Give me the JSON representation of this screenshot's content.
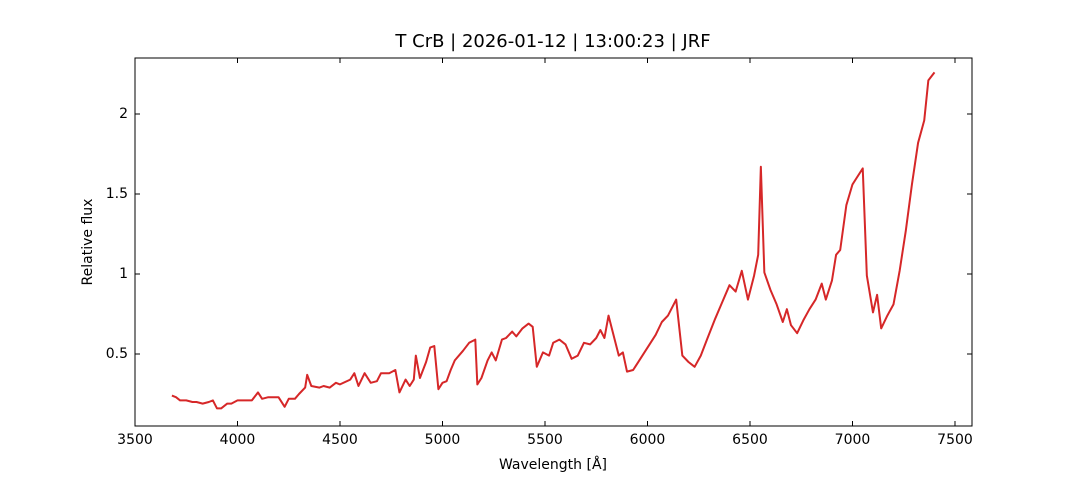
{
  "chart_data": {
    "type": "line",
    "title": "T CrB | 2026-01-12 | 13:00:23 | JRF",
    "x_label": "Wavelength [Å]",
    "y_label": "Relative flux",
    "x": [
      3680,
      3700,
      3720,
      3750,
      3780,
      3800,
      3830,
      3860,
      3880,
      3900,
      3920,
      3950,
      3970,
      4000,
      4030,
      4070,
      4100,
      4120,
      4150,
      4200,
      4230,
      4250,
      4280,
      4300,
      4330,
      4340,
      4360,
      4400,
      4420,
      4450,
      4480,
      4500,
      4550,
      4570,
      4590,
      4620,
      4650,
      4680,
      4700,
      4740,
      4770,
      4790,
      4820,
      4840,
      4860,
      4870,
      4890,
      4920,
      4940,
      4960,
      4980,
      5000,
      5020,
      5040,
      5060,
      5100,
      5130,
      5160,
      5170,
      5190,
      5220,
      5240,
      5260,
      5290,
      5310,
      5340,
      5360,
      5390,
      5420,
      5440,
      5460,
      5490,
      5520,
      5540,
      5570,
      5600,
      5630,
      5660,
      5690,
      5720,
      5750,
      5770,
      5790,
      5810,
      5840,
      5860,
      5880,
      5900,
      5930,
      5960,
      5990,
      6010,
      6040,
      6070,
      6100,
      6140,
      6170,
      6200,
      6230,
      6260,
      6290,
      6330,
      6360,
      6400,
      6430,
      6460,
      6490,
      6520,
      6540,
      6553,
      6570,
      6600,
      6630,
      6660,
      6680,
      6700,
      6730,
      6760,
      6790,
      6820,
      6850,
      6870,
      6900,
      6920,
      6940,
      6970,
      7000,
      7020,
      7050,
      7070,
      7100,
      7120,
      7140,
      7170,
      7200,
      7230,
      7260,
      7290,
      7320,
      7350,
      7370,
      7400
    ],
    "series": [
      {
        "name": "T CrB",
        "color": "#d62728",
        "values": [
          0.24,
          0.23,
          0.21,
          0.21,
          0.2,
          0.2,
          0.19,
          0.2,
          0.21,
          0.16,
          0.16,
          0.19,
          0.19,
          0.21,
          0.21,
          0.21,
          0.26,
          0.22,
          0.23,
          0.23,
          0.17,
          0.22,
          0.22,
          0.25,
          0.29,
          0.37,
          0.3,
          0.29,
          0.3,
          0.29,
          0.32,
          0.31,
          0.34,
          0.38,
          0.3,
          0.38,
          0.32,
          0.33,
          0.38,
          0.38,
          0.4,
          0.26,
          0.34,
          0.3,
          0.34,
          0.49,
          0.35,
          0.45,
          0.54,
          0.55,
          0.28,
          0.32,
          0.33,
          0.4,
          0.46,
          0.52,
          0.57,
          0.59,
          0.31,
          0.35,
          0.46,
          0.51,
          0.46,
          0.59,
          0.6,
          0.64,
          0.61,
          0.66,
          0.69,
          0.67,
          0.42,
          0.51,
          0.49,
          0.57,
          0.59,
          0.56,
          0.47,
          0.49,
          0.57,
          0.56,
          0.6,
          0.65,
          0.6,
          0.74,
          0.59,
          0.49,
          0.51,
          0.39,
          0.4,
          0.46,
          0.52,
          0.56,
          0.62,
          0.7,
          0.74,
          0.84,
          0.49,
          0.45,
          0.42,
          0.49,
          0.59,
          0.72,
          0.81,
          0.93,
          0.89,
          1.02,
          0.84,
          0.99,
          1.12,
          1.67,
          1.01,
          0.9,
          0.81,
          0.7,
          0.78,
          0.68,
          0.63,
          0.71,
          0.78,
          0.84,
          0.94,
          0.84,
          0.96,
          1.12,
          1.15,
          1.43,
          1.56,
          1.6,
          1.66,
          0.99,
          0.76,
          0.87,
          0.66,
          0.74,
          0.81,
          1.02,
          1.27,
          1.56,
          1.82,
          1.96,
          2.21,
          2.26
        ]
      }
    ],
    "xlim": [
      3500,
      7583
    ],
    "ylim": [
      0.05,
      2.35
    ],
    "xticks": [
      3500,
      4000,
      4500,
      5000,
      5500,
      6000,
      6500,
      7000,
      7500
    ],
    "yticks": [
      0.5,
      1.0,
      1.5,
      2.0
    ]
  }
}
